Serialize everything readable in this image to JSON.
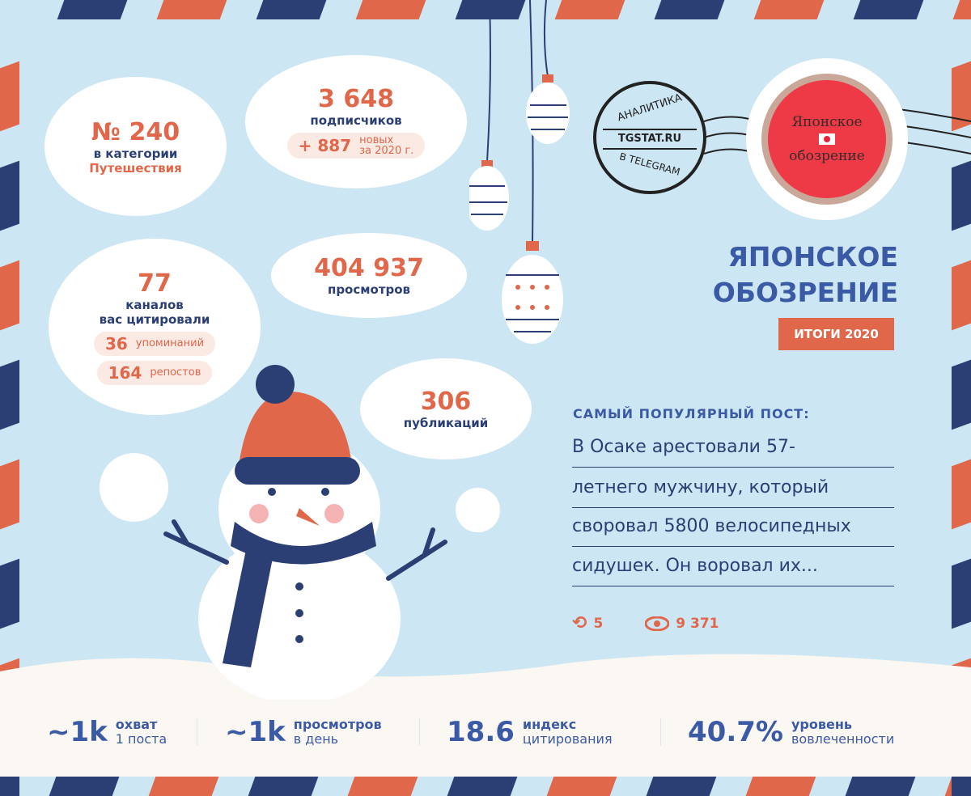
{
  "colors": {
    "background": "#cde6f3",
    "navy": "#2b3f74",
    "orange": "#e0674a",
    "title_blue": "#3b5aa6",
    "snow": "#fbf7f2"
  },
  "rank": {
    "number": "№ 240",
    "line1": "в категории",
    "line2": "Путешествия"
  },
  "subscribers": {
    "value": "3 648",
    "label": "подписчиков",
    "new_value": "+ 887",
    "new_label1": "новых",
    "new_label2": "за 2020 г."
  },
  "citations": {
    "value": "77",
    "line1": "каналов",
    "line2": "вас цитировали",
    "mentions_value": "36",
    "mentions_label": "упоминаний",
    "reposts_value": "164",
    "reposts_label": "репостов"
  },
  "views": {
    "value": "404 937",
    "label": "просмотров"
  },
  "publications": {
    "value": "306",
    "label": "публикаций"
  },
  "stamp": {
    "top": "АНАЛИТИКА",
    "middle": "TGSTAT.RU",
    "bottom": "В TELEGRAM"
  },
  "channel_stamp": {
    "line1": "Японское",
    "line2": "обозрение"
  },
  "title": {
    "line1": "ЯПОНСКОЕ",
    "line2": "ОБОЗРЕНИЕ",
    "badge": "ИТОГИ 2020"
  },
  "popular_post": {
    "heading": "САМЫЙ ПОПУЛЯРНЫЙ ПОСТ:",
    "lines": [
      "В Осаке арестовали 57-",
      "летнего мужчину, который",
      "своровал 5800 велосипедных",
      "сидушек. Он воровал их..."
    ],
    "reposts": "5",
    "views": "9 371",
    "repost_icon": "repost-icon",
    "views_icon": "eye-icon"
  },
  "stats": [
    {
      "value": "~1k",
      "label1": "охват",
      "label2": "1 поста"
    },
    {
      "value": "~1k",
      "label1": "просмотров",
      "label2": "в день"
    },
    {
      "value": "18.6",
      "label1": "индекс",
      "label2": "цитирования"
    },
    {
      "value": "40.7%",
      "label1": "уровень",
      "label2": "вовлеченности"
    }
  ]
}
